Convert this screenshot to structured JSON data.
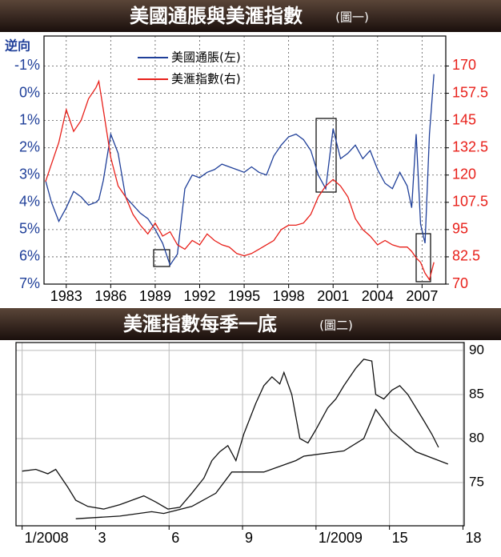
{
  "chart_data": [
    {
      "type": "line",
      "title": "美國通脹與美滙指數",
      "subtitle": "(圖一)",
      "ylabel": "逆向",
      "grid": "dashed",
      "xlim": [
        1981.5,
        2008.6
      ],
      "xticks": [
        1983,
        1986,
        1989,
        1992,
        1995,
        1998,
        2001,
        2004,
        2007
      ],
      "ylim": [
        7,
        -2.1
      ],
      "yticks": [
        {
          "value": -1,
          "label": "-1%"
        },
        {
          "value": 0,
          "label": "0%"
        },
        {
          "value": 1,
          "label": "1%"
        },
        {
          "value": 2,
          "label": "2%"
        },
        {
          "value": 3,
          "label": "3%"
        },
        {
          "value": 4,
          "label": "4%"
        },
        {
          "value": 5,
          "label": "5%"
        },
        {
          "value": 6,
          "label": "6%"
        },
        {
          "value": 7,
          "label": "7%"
        }
      ],
      "y2lim": [
        70,
        183.75
      ],
      "y2ticks": [
        170,
        157.5,
        145,
        132.5,
        120,
        107.5,
        95,
        82.5,
        70
      ],
      "x": [
        1981.6,
        1982,
        1982.5,
        1983,
        1983.5,
        1984,
        1984.5,
        1985,
        1985.2,
        1985.5,
        1986,
        1986.5,
        1987,
        1987.5,
        1988,
        1988.5,
        1989,
        1989.5,
        1990,
        1990.5,
        1991,
        1991.5,
        1992,
        1992.5,
        1993,
        1993.5,
        1994,
        1994.5,
        1995,
        1995.5,
        1996,
        1996.5,
        1997,
        1997.5,
        1998,
        1998.5,
        1999,
        1999.5,
        2000,
        2000.5,
        2001,
        2001.5,
        2002,
        2002.5,
        2003,
        2003.5,
        2004,
        2004.5,
        2005,
        2005.5,
        2006,
        2006.3,
        2006.6,
        2006.9,
        2007.2,
        2007.5,
        2007.8
      ],
      "series": [
        {
          "name": "美國通脹(左)",
          "color": "#1f3f99",
          "values": [
            3.2,
            4,
            4.7,
            4.2,
            3.6,
            3.8,
            4.1,
            4,
            3.9,
            3.2,
            1.5,
            2.2,
            3.8,
            4.1,
            4.4,
            4.6,
            5,
            5.5,
            6.3,
            5.9,
            3.5,
            3,
            3.1,
            2.9,
            2.8,
            2.6,
            2.7,
            2.8,
            2.9,
            2.7,
            2.9,
            3,
            2.3,
            1.9,
            1.6,
            1.5,
            1.7,
            2.1,
            3,
            3.5,
            1.3,
            2.4,
            2.2,
            1.9,
            2.4,
            2.1,
            2.8,
            3.3,
            3.5,
            2.9,
            3.4,
            4.2,
            1.5,
            4.8,
            5.5,
            1.5,
            -0.7
          ]
        },
        {
          "name": "美滙指數(右)",
          "color": "#e8201a",
          "axis": "y2",
          "values": [
            117,
            125,
            135,
            150,
            140,
            145,
            155,
            160,
            163,
            150,
            128,
            115,
            110,
            102,
            97,
            93,
            98,
            92,
            94,
            88,
            86,
            90,
            88,
            93,
            90,
            88,
            87,
            84,
            83,
            84,
            86,
            88,
            90,
            95,
            97,
            97,
            98,
            102,
            110,
            115,
            118,
            115,
            110,
            100,
            95,
            92,
            88,
            90,
            88,
            87,
            87,
            85,
            82,
            80,
            75,
            72,
            80
          ]
        }
      ]
    },
    {
      "type": "line",
      "title": "美滙指數每季一底",
      "subtitle": "(圖二)",
      "grid": "solid",
      "yaxis": "right",
      "xlim": [
        -0.25,
        18.05
      ],
      "xticks": [
        {
          "value": 0,
          "label": "1/2008"
        },
        3,
        6,
        9,
        {
          "value": 12,
          "label": "1/2009"
        },
        15,
        18
      ],
      "ylim": [
        70.1,
        90.9
      ],
      "yticks": [
        90,
        85,
        80,
        75
      ],
      "series": [
        {
          "color": "#111111",
          "x": [
            0,
            0.56,
            1.05,
            1.37,
            1.86,
            2.19,
            2.68,
            3.33,
            3.99,
            4.48,
            4.97,
            5.46,
            5.95,
            6.44,
            6.93,
            7.42,
            7.75,
            8.07,
            8.4,
            8.73,
            9.05,
            9.54,
            9.87,
            10.2,
            10.52,
            10.69,
            11.01,
            11.34,
            11.67,
            11.99,
            12.48,
            12.81,
            13.14,
            13.63,
            13.95,
            14.28,
            14.44,
            14.77,
            15.1,
            15.42,
            15.75,
            16.08,
            16.41,
            16.73,
            17
          ],
          "values": [
            76.3,
            76.5,
            76,
            76.5,
            74.5,
            73,
            72.3,
            72,
            72.5,
            73,
            73.5,
            72.8,
            72,
            72.2,
            73.8,
            75.5,
            77.5,
            78.5,
            79.2,
            77.5,
            80.5,
            84,
            86,
            87,
            86.2,
            87.5,
            85,
            80,
            79.5,
            81,
            83.5,
            84.5,
            86,
            88,
            89,
            88.8,
            85,
            84.5,
            85.5,
            86,
            85,
            83.5,
            82,
            80.5,
            79
          ]
        },
        {
          "color": "#111111",
          "x": [
            2.19,
            3.99,
            5.29,
            5.78,
            6.93,
            7.91,
            8.56,
            9.87,
            11.18,
            11.5,
            13.14,
            13.95,
            14.44,
            15.1,
            16.08,
            17.39
          ],
          "values": [
            70.9,
            71.2,
            71.7,
            71.5,
            72.3,
            73.8,
            76.2,
            76.2,
            77.5,
            78,
            78.6,
            80,
            83.3,
            80.8,
            78.5,
            77.1
          ]
        }
      ]
    }
  ]
}
